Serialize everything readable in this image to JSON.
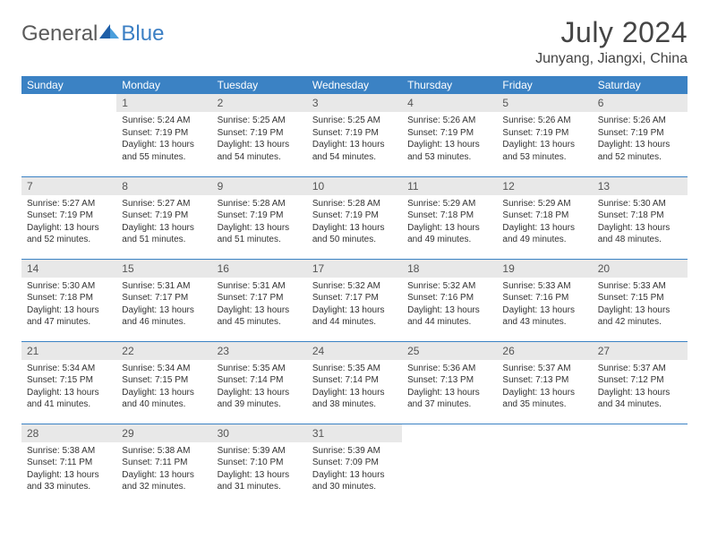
{
  "brand": {
    "word1": "General",
    "word2": "Blue",
    "color1": "#5a5a5a",
    "color2": "#3b7fc4"
  },
  "title": "July 2024",
  "location": "Junyang, Jiangxi, China",
  "colors": {
    "header_bg": "#3b82c4",
    "header_fg": "#ffffff",
    "daynum_bg": "#e8e8e8",
    "row_border": "#3b82c4",
    "text": "#333333"
  },
  "weekdays": [
    "Sunday",
    "Monday",
    "Tuesday",
    "Wednesday",
    "Thursday",
    "Friday",
    "Saturday"
  ],
  "weeks": [
    [
      null,
      {
        "n": "1",
        "sr": "Sunrise: 5:24 AM",
        "ss": "Sunset: 7:19 PM",
        "dl": "Daylight: 13 hours and 55 minutes."
      },
      {
        "n": "2",
        "sr": "Sunrise: 5:25 AM",
        "ss": "Sunset: 7:19 PM",
        "dl": "Daylight: 13 hours and 54 minutes."
      },
      {
        "n": "3",
        "sr": "Sunrise: 5:25 AM",
        "ss": "Sunset: 7:19 PM",
        "dl": "Daylight: 13 hours and 54 minutes."
      },
      {
        "n": "4",
        "sr": "Sunrise: 5:26 AM",
        "ss": "Sunset: 7:19 PM",
        "dl": "Daylight: 13 hours and 53 minutes."
      },
      {
        "n": "5",
        "sr": "Sunrise: 5:26 AM",
        "ss": "Sunset: 7:19 PM",
        "dl": "Daylight: 13 hours and 53 minutes."
      },
      {
        "n": "6",
        "sr": "Sunrise: 5:26 AM",
        "ss": "Sunset: 7:19 PM",
        "dl": "Daylight: 13 hours and 52 minutes."
      }
    ],
    [
      {
        "n": "7",
        "sr": "Sunrise: 5:27 AM",
        "ss": "Sunset: 7:19 PM",
        "dl": "Daylight: 13 hours and 52 minutes."
      },
      {
        "n": "8",
        "sr": "Sunrise: 5:27 AM",
        "ss": "Sunset: 7:19 PM",
        "dl": "Daylight: 13 hours and 51 minutes."
      },
      {
        "n": "9",
        "sr": "Sunrise: 5:28 AM",
        "ss": "Sunset: 7:19 PM",
        "dl": "Daylight: 13 hours and 51 minutes."
      },
      {
        "n": "10",
        "sr": "Sunrise: 5:28 AM",
        "ss": "Sunset: 7:19 PM",
        "dl": "Daylight: 13 hours and 50 minutes."
      },
      {
        "n": "11",
        "sr": "Sunrise: 5:29 AM",
        "ss": "Sunset: 7:18 PM",
        "dl": "Daylight: 13 hours and 49 minutes."
      },
      {
        "n": "12",
        "sr": "Sunrise: 5:29 AM",
        "ss": "Sunset: 7:18 PM",
        "dl": "Daylight: 13 hours and 49 minutes."
      },
      {
        "n": "13",
        "sr": "Sunrise: 5:30 AM",
        "ss": "Sunset: 7:18 PM",
        "dl": "Daylight: 13 hours and 48 minutes."
      }
    ],
    [
      {
        "n": "14",
        "sr": "Sunrise: 5:30 AM",
        "ss": "Sunset: 7:18 PM",
        "dl": "Daylight: 13 hours and 47 minutes."
      },
      {
        "n": "15",
        "sr": "Sunrise: 5:31 AM",
        "ss": "Sunset: 7:17 PM",
        "dl": "Daylight: 13 hours and 46 minutes."
      },
      {
        "n": "16",
        "sr": "Sunrise: 5:31 AM",
        "ss": "Sunset: 7:17 PM",
        "dl": "Daylight: 13 hours and 45 minutes."
      },
      {
        "n": "17",
        "sr": "Sunrise: 5:32 AM",
        "ss": "Sunset: 7:17 PM",
        "dl": "Daylight: 13 hours and 44 minutes."
      },
      {
        "n": "18",
        "sr": "Sunrise: 5:32 AM",
        "ss": "Sunset: 7:16 PM",
        "dl": "Daylight: 13 hours and 44 minutes."
      },
      {
        "n": "19",
        "sr": "Sunrise: 5:33 AM",
        "ss": "Sunset: 7:16 PM",
        "dl": "Daylight: 13 hours and 43 minutes."
      },
      {
        "n": "20",
        "sr": "Sunrise: 5:33 AM",
        "ss": "Sunset: 7:15 PM",
        "dl": "Daylight: 13 hours and 42 minutes."
      }
    ],
    [
      {
        "n": "21",
        "sr": "Sunrise: 5:34 AM",
        "ss": "Sunset: 7:15 PM",
        "dl": "Daylight: 13 hours and 41 minutes."
      },
      {
        "n": "22",
        "sr": "Sunrise: 5:34 AM",
        "ss": "Sunset: 7:15 PM",
        "dl": "Daylight: 13 hours and 40 minutes."
      },
      {
        "n": "23",
        "sr": "Sunrise: 5:35 AM",
        "ss": "Sunset: 7:14 PM",
        "dl": "Daylight: 13 hours and 39 minutes."
      },
      {
        "n": "24",
        "sr": "Sunrise: 5:35 AM",
        "ss": "Sunset: 7:14 PM",
        "dl": "Daylight: 13 hours and 38 minutes."
      },
      {
        "n": "25",
        "sr": "Sunrise: 5:36 AM",
        "ss": "Sunset: 7:13 PM",
        "dl": "Daylight: 13 hours and 37 minutes."
      },
      {
        "n": "26",
        "sr": "Sunrise: 5:37 AM",
        "ss": "Sunset: 7:13 PM",
        "dl": "Daylight: 13 hours and 35 minutes."
      },
      {
        "n": "27",
        "sr": "Sunrise: 5:37 AM",
        "ss": "Sunset: 7:12 PM",
        "dl": "Daylight: 13 hours and 34 minutes."
      }
    ],
    [
      {
        "n": "28",
        "sr": "Sunrise: 5:38 AM",
        "ss": "Sunset: 7:11 PM",
        "dl": "Daylight: 13 hours and 33 minutes."
      },
      {
        "n": "29",
        "sr": "Sunrise: 5:38 AM",
        "ss": "Sunset: 7:11 PM",
        "dl": "Daylight: 13 hours and 32 minutes."
      },
      {
        "n": "30",
        "sr": "Sunrise: 5:39 AM",
        "ss": "Sunset: 7:10 PM",
        "dl": "Daylight: 13 hours and 31 minutes."
      },
      {
        "n": "31",
        "sr": "Sunrise: 5:39 AM",
        "ss": "Sunset: 7:09 PM",
        "dl": "Daylight: 13 hours and 30 minutes."
      },
      null,
      null,
      null
    ]
  ]
}
